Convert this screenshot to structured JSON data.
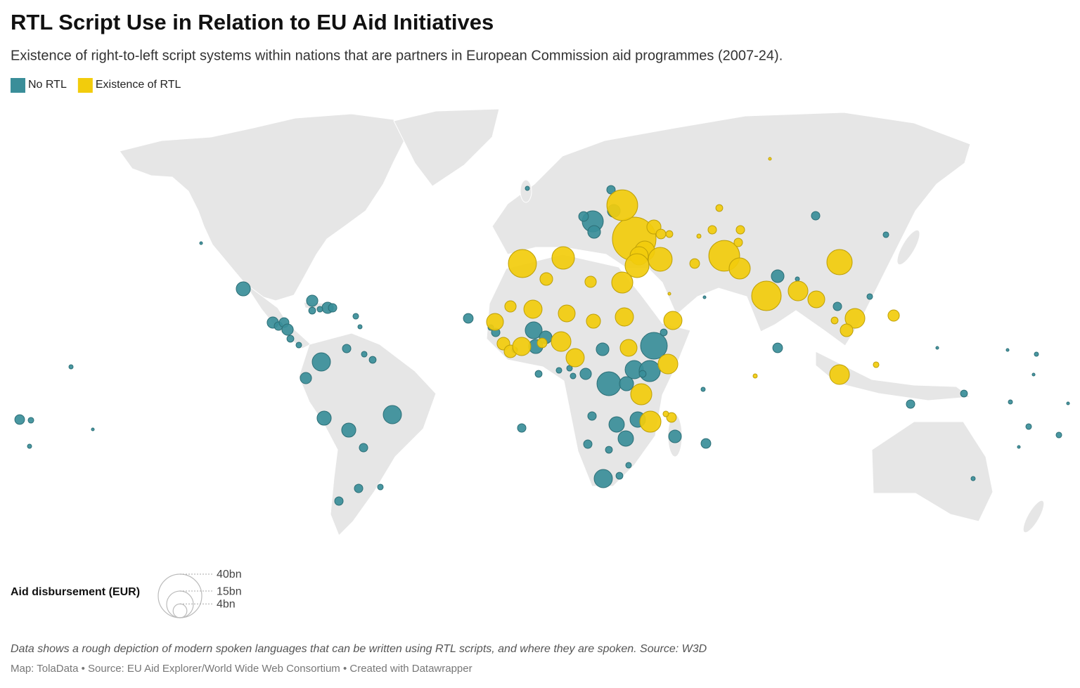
{
  "chart_data": {
    "type": "bubble-map",
    "title": "RTL Script Use in Relation to EU Aid Initiatives",
    "subtitle": "Existence of right-to-left script systems within nations that are partners in European Commission aid programmes (2007-24).",
    "note": "Data shows a rough depiction of modern spoken languages that can be written using RTL scripts, and where they are spoken. Source: W3D",
    "source": "Map: TolaData • Source: EU Aid Explorer/World Wide Web Consortium • Created with Datawrapper",
    "size_legend": {
      "title": "Aid disbursement (EUR)",
      "ticks": [
        {
          "value": 40,
          "label": "40bn"
        },
        {
          "value": 15,
          "label": "15bn"
        },
        {
          "value": 4,
          "label": "4bn"
        }
      ]
    },
    "series": [
      {
        "name": "No RTL",
        "color": "#3a8e99",
        "points": [
          {
            "lon": -103.5,
            "lat": 27.25,
            "value": 4.2
          },
          {
            "lon": -79,
            "lat": 23,
            "value": 2.7
          },
          {
            "lon": -73.5,
            "lat": 20.5,
            "value": 2.7
          },
          {
            "lon": -71.75,
            "lat": 20.5,
            "value": 1.5
          },
          {
            "lon": -79,
            "lat": 19.5,
            "value": 1.0
          },
          {
            "lon": -76.25,
            "lat": 20,
            "value": 0.67
          },
          {
            "lon": -93,
            "lat": 15.25,
            "value": 2.7
          },
          {
            "lon": -91,
            "lat": 14,
            "value": 1.5
          },
          {
            "lon": -89,
            "lat": 15.25,
            "value": 2.0
          },
          {
            "lon": -87.75,
            "lat": 12.75,
            "value": 2.7
          },
          {
            "lon": -86.75,
            "lat": 9.5,
            "value": 1.0
          },
          {
            "lon": -83.75,
            "lat": 7.25,
            "value": 0.67
          },
          {
            "lon": -75.75,
            "lat": 1.25,
            "value": 7.0
          },
          {
            "lon": -81.25,
            "lat": -4.5,
            "value": 2.7
          },
          {
            "lon": -74.75,
            "lat": -18.75,
            "value": 4.2
          },
          {
            "lon": -66,
            "lat": -23,
            "value": 4.2
          },
          {
            "lon": -50.5,
            "lat": -17.5,
            "value": 7.0
          },
          {
            "lon": -60.75,
            "lat": -29.25,
            "value": 1.5
          },
          {
            "lon": -62.5,
            "lat": -43.75,
            "value": 1.5
          },
          {
            "lon": -69.5,
            "lat": -48.25,
            "value": 1.5
          },
          {
            "lon": -54.75,
            "lat": -43.25,
            "value": 0.67
          },
          {
            "lon": -66.75,
            "lat": 6,
            "value": 1.5
          },
          {
            "lon": -60.5,
            "lat": 4,
            "value": 0.67
          },
          {
            "lon": -57.5,
            "lat": 2,
            "value": 1.0
          },
          {
            "lon": -63.5,
            "lat": 17.5,
            "value": 0.67
          },
          {
            "lon": -62,
            "lat": 13.75,
            "value": 0.37
          },
          {
            "lon": -183,
            "lat": -19.25,
            "value": 2.0
          },
          {
            "lon": -179,
            "lat": -19.5,
            "value": 0.67
          },
          {
            "lon": -164.75,
            "lat": -0.5,
            "value": 0.37
          },
          {
            "lon": -179.5,
            "lat": -28.75,
            "value": 0.37
          },
          {
            "lon": -157,
            "lat": -22.75,
            "value": 0.17
          },
          {
            "lon": -118.5,
            "lat": 43.5,
            "value": 0.17
          },
          {
            "lon": -23.5,
            "lat": 16.75,
            "value": 2.0
          },
          {
            "lon": -2.5,
            "lat": 63,
            "value": 0.37
          },
          {
            "lon": 27.25,
            "lat": 62.5,
            "value": 1.5
          },
          {
            "lon": 28.25,
            "lat": 55,
            "value": 3.4
          },
          {
            "lon": 20.75,
            "lat": 51.25,
            "value": 9.4
          },
          {
            "lon": 17.5,
            "lat": 53,
            "value": 2.0
          },
          {
            "lon": 21.25,
            "lat": 47.5,
            "value": 3.4
          },
          {
            "lon": -0.25,
            "lat": 12.5,
            "value": 6.0
          },
          {
            "lon": 4,
            "lat": 10,
            "value": 3.4
          },
          {
            "lon": 0.5,
            "lat": 6.75,
            "value": 4.2
          },
          {
            "lon": -15.5,
            "lat": 13.5,
            "value": 0.67
          },
          {
            "lon": -13.75,
            "lat": 11.75,
            "value": 1.5
          },
          {
            "lon": -7,
            "lat": 5.5,
            "value": 0.67
          },
          {
            "lon": 24.25,
            "lat": 5.75,
            "value": 3.4
          },
          {
            "lon": 42.5,
            "lat": 7,
            "value": 15
          },
          {
            "lon": 46,
            "lat": 11.75,
            "value": 1.0
          },
          {
            "lon": 1.5,
            "lat": -3,
            "value": 1.0
          },
          {
            "lon": 8.75,
            "lat": -1.75,
            "value": 0.67
          },
          {
            "lon": 12.5,
            "lat": -1,
            "value": 0.67
          },
          {
            "lon": 18.25,
            "lat": -3,
            "value": 2.7
          },
          {
            "lon": 13.75,
            "lat": -3.75,
            "value": 0.67
          },
          {
            "lon": 26.5,
            "lat": -6.5,
            "value": 12
          },
          {
            "lon": 35.5,
            "lat": -1.5,
            "value": 7.0
          },
          {
            "lon": 41,
            "lat": -2,
            "value": 9.4
          },
          {
            "lon": 32.75,
            "lat": -6.5,
            "value": 4.2
          },
          {
            "lon": 38.5,
            "lat": -3,
            "value": 1.0
          },
          {
            "lon": 20.5,
            "lat": -18,
            "value": 1.5
          },
          {
            "lon": 29.25,
            "lat": -21,
            "value": 5.0
          },
          {
            "lon": 36.75,
            "lat": -19.25,
            "value": 5.0
          },
          {
            "lon": 32.5,
            "lat": -26,
            "value": 5.0
          },
          {
            "lon": 19,
            "lat": -28,
            "value": 1.5
          },
          {
            "lon": 26.5,
            "lat": -30,
            "value": 1.0
          },
          {
            "lon": 50,
            "lat": -25.25,
            "value": 3.4
          },
          {
            "lon": 61,
            "lat": -27.75,
            "value": 2.0
          },
          {
            "lon": 33.5,
            "lat": -35.5,
            "value": 0.67
          },
          {
            "lon": 30.25,
            "lat": -39.25,
            "value": 1.0
          },
          {
            "lon": 24.5,
            "lat": -40.25,
            "value": 7.0
          },
          {
            "lon": -4.5,
            "lat": -22.25,
            "value": 1.5
          },
          {
            "lon": 86.5,
            "lat": 31.75,
            "value": 3.4
          },
          {
            "lon": 93.5,
            "lat": 30.75,
            "value": 0.37
          },
          {
            "lon": 86.5,
            "lat": 6.25,
            "value": 2.0
          },
          {
            "lon": 100,
            "lat": 53.25,
            "value": 1.5
          },
          {
            "lon": 125,
            "lat": 46.5,
            "value": 0.67
          },
          {
            "lon": 107.75,
            "lat": 21,
            "value": 1.5
          },
          {
            "lon": 119.25,
            "lat": 24.5,
            "value": 0.67
          },
          {
            "lon": 60,
            "lat": -8.5,
            "value": 0.37
          },
          {
            "lon": 60.5,
            "lat": 24.25,
            "value": 0.17
          },
          {
            "lon": 133.75,
            "lat": -13.75,
            "value": 1.5
          },
          {
            "lon": 152.75,
            "lat": -10,
            "value": 1.0
          },
          {
            "lon": 143.25,
            "lat": 6.25,
            "value": 0.17
          },
          {
            "lon": 168.25,
            "lat": 5.5,
            "value": 0.17
          },
          {
            "lon": 178.5,
            "lat": 4,
            "value": 0.37
          },
          {
            "lon": 177.5,
            "lat": -3.25,
            "value": 0.17
          },
          {
            "lon": 169.25,
            "lat": -13,
            "value": 0.37
          },
          {
            "lon": 175.75,
            "lat": -21.75,
            "value": 0.67
          },
          {
            "lon": 186.5,
            "lat": -24.75,
            "value": 0.67
          },
          {
            "lon": 172.25,
            "lat": -29,
            "value": 0.17
          },
          {
            "lon": 156,
            "lat": -40.25,
            "value": 0.37
          },
          {
            "lon": 189.75,
            "lat": -13.5,
            "value": 0.17
          }
        ]
      },
      {
        "name": "Existence of RTL",
        "color": "#f2cc0c",
        "points": [
          {
            "lon": 35.5,
            "lat": 45,
            "value": 40
          },
          {
            "lon": 31.25,
            "lat": 57,
            "value": 20
          },
          {
            "lon": 42.5,
            "lat": 49.25,
            "value": 4.2
          },
          {
            "lon": 45,
            "lat": 46.75,
            "value": 2.0
          },
          {
            "lon": 48,
            "lat": 46.75,
            "value": 1.0
          },
          {
            "lon": 39.25,
            "lat": 40.75,
            "value": 8.2
          },
          {
            "lon": 37.25,
            "lat": 39,
            "value": 7.0
          },
          {
            "lon": 36.5,
            "lat": 35.5,
            "value": 12
          },
          {
            "lon": 44.75,
            "lat": 37.75,
            "value": 12
          },
          {
            "lon": 31.25,
            "lat": 29.5,
            "value": 9.4
          },
          {
            "lon": -4.25,
            "lat": 36.25,
            "value": 16.6
          },
          {
            "lon": 10.25,
            "lat": 38.25,
            "value": 10.7
          },
          {
            "lon": 4.25,
            "lat": 30.75,
            "value": 3.4
          },
          {
            "lon": 20,
            "lat": 29.75,
            "value": 2.7
          },
          {
            "lon": -8.5,
            "lat": 21,
            "value": 2.7
          },
          {
            "lon": -0.5,
            "lat": 20,
            "value": 7.0
          },
          {
            "lon": 11.5,
            "lat": 18.5,
            "value": 6.0
          },
          {
            "lon": 21,
            "lat": 15.75,
            "value": 4.2
          },
          {
            "lon": 32,
            "lat": 17.25,
            "value": 7.0
          },
          {
            "lon": 49.25,
            "lat": 16,
            "value": 7.0
          },
          {
            "lon": -14,
            "lat": 15.5,
            "value": 6.0
          },
          {
            "lon": -11,
            "lat": 7.75,
            "value": 3.4
          },
          {
            "lon": -8.5,
            "lat": 5,
            "value": 3.4
          },
          {
            "lon": -4.5,
            "lat": 6.75,
            "value": 7.0
          },
          {
            "lon": 2.75,
            "lat": 8,
            "value": 2.0
          },
          {
            "lon": 9.5,
            "lat": 8.5,
            "value": 8.2
          },
          {
            "lon": 14.5,
            "lat": 2.75,
            "value": 7.0
          },
          {
            "lon": 33.5,
            "lat": 6.25,
            "value": 6.0
          },
          {
            "lon": 47.5,
            "lat": 0.5,
            "value": 8.2
          },
          {
            "lon": 38,
            "lat": -10.25,
            "value": 9.4
          },
          {
            "lon": 41.25,
            "lat": -20,
            "value": 9.4
          },
          {
            "lon": 48.75,
            "lat": -18.5,
            "value": 2.0
          },
          {
            "lon": 46.75,
            "lat": -17.25,
            "value": 0.67
          },
          {
            "lon": 57,
            "lat": 36.25,
            "value": 2.0
          },
          {
            "lon": 67.5,
            "lat": 39,
            "value": 20
          },
          {
            "lon": 73,
            "lat": 34.5,
            "value": 9.4
          },
          {
            "lon": 65.75,
            "lat": 56,
            "value": 1.0
          },
          {
            "lon": 63.25,
            "lat": 48.25,
            "value": 1.5
          },
          {
            "lon": 73.25,
            "lat": 48.25,
            "value": 1.5
          },
          {
            "lon": 72.5,
            "lat": 43.75,
            "value": 1.5
          },
          {
            "lon": 58.5,
            "lat": 46,
            "value": 0.37
          },
          {
            "lon": 82.5,
            "lat": 24.75,
            "value": 18.4
          },
          {
            "lon": 93.75,
            "lat": 26.5,
            "value": 8.2
          },
          {
            "lon": 100.25,
            "lat": 23.5,
            "value": 6.0
          },
          {
            "lon": 108.5,
            "lat": 36.75,
            "value": 13.5
          },
          {
            "lon": 106.75,
            "lat": 16,
            "value": 1.0
          },
          {
            "lon": 114,
            "lat": 16.75,
            "value": 8.2
          },
          {
            "lon": 111,
            "lat": 12.5,
            "value": 3.4
          },
          {
            "lon": 127.75,
            "lat": 17.75,
            "value": 2.7
          },
          {
            "lon": 108.5,
            "lat": -3.25,
            "value": 8.2
          },
          {
            "lon": 121.5,
            "lat": 0.25,
            "value": 0.67
          },
          {
            "lon": 78.5,
            "lat": -3.75,
            "value": 0.37
          },
          {
            "lon": 48,
            "lat": 25.5,
            "value": 0.17
          },
          {
            "lon": 83.75,
            "lat": 73.5,
            "value": 0.17
          }
        ]
      }
    ]
  }
}
